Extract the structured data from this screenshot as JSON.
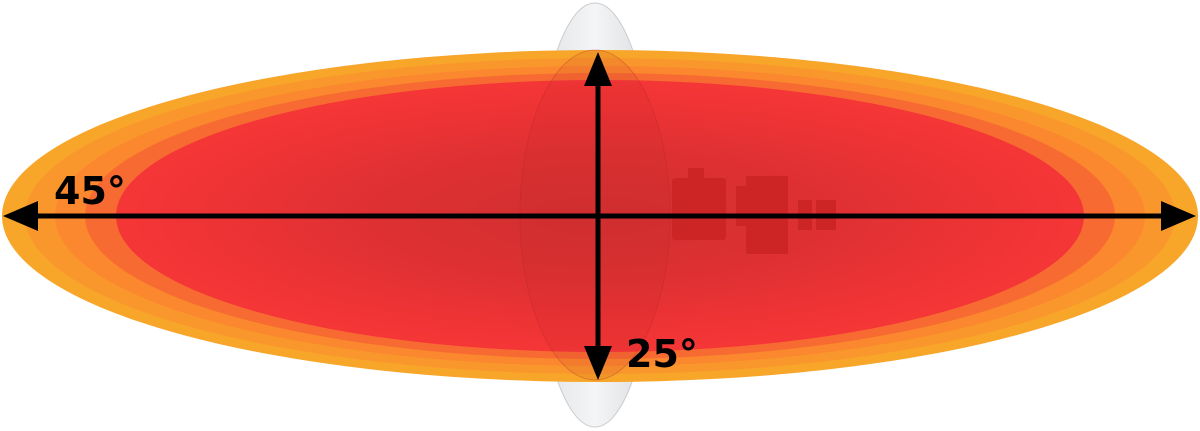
{
  "diagram": {
    "horizontal_angle_label": "45°",
    "vertical_angle_label": "25°",
    "colors": {
      "outer_beam": "#f7a12a",
      "mid_beam": "#fb8a2e",
      "core_beam": "#f43434",
      "center_beam": "#d83131",
      "arrows": "#000000",
      "lens_cover": "#e9ebee"
    }
  }
}
